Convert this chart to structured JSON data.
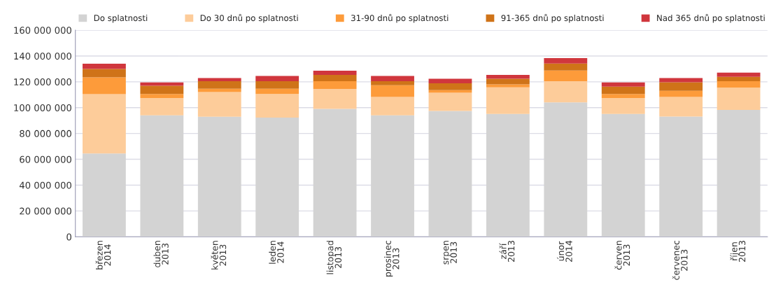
{
  "chart_data": {
    "type": "bar",
    "stacked": true,
    "categories": [
      "březen\n2014",
      "duben\n2013",
      "květen\n2013",
      "leden\n2014",
      "listopad\n2013",
      "prosinec\n2013",
      "srpen\n2013",
      "září\n2013",
      "únor\n2014",
      "červen\n2013",
      "červenec\n2013",
      "říjen\n2013"
    ],
    "series": [
      {
        "name": "Do splatnosti",
        "color": "#d3d3d3",
        "values": [
          64500000,
          94000000,
          93000000,
          92300000,
          99000000,
          94000000,
          97400000,
          95100000,
          104000000,
          95100000,
          93100000,
          98300000
        ]
      },
      {
        "name": "Do 30 dnů po splatnosti",
        "color": "#fdcc9a",
        "values": [
          46000000,
          13400000,
          19000000,
          18300000,
          15500000,
          14200000,
          14100000,
          20600000,
          16500000,
          12300000,
          15100000,
          17200000
        ]
      },
      {
        "name": "31-90 dnů po splatnosti",
        "color": "#fd9b3a",
        "values": [
          13000000,
          3200000,
          2700000,
          4100000,
          5900000,
          9100000,
          2100000,
          2300000,
          8200000,
          3200000,
          4800000,
          5000000
        ]
      },
      {
        "name": "91-365 dnů po splatnosti",
        "color": "#cf7318",
        "values": [
          6500000,
          6400000,
          5800000,
          5800000,
          4900000,
          3200000,
          5200000,
          4300000,
          5400000,
          5700000,
          6600000,
          3300000
        ]
      },
      {
        "name": "Nad 365 dnů po splatnosti",
        "color": "#d0363d",
        "values": [
          4000000,
          2500000,
          2400000,
          4000000,
          3300000,
          4000000,
          3500000,
          3100000,
          4300000,
          3200000,
          3300000,
          3300000
        ]
      }
    ],
    "ylim": [
      0,
      160000000
    ],
    "yticks": [
      0,
      {
        "value": 20000000,
        "label": "20 000 000"
      },
      {
        "value": 40000000,
        "label": "40 000 000"
      },
      {
        "value": 60000000,
        "label": "60 000 000"
      },
      {
        "value": 80000000,
        "label": "80 000 000"
      },
      {
        "value": 100000000,
        "label": "100 000 000"
      },
      {
        "value": 120000000,
        "label": "120 000 000"
      },
      {
        "value": 140000000,
        "label": "140 000 000"
      },
      {
        "value": 160000000,
        "label": "160 000 000"
      }
    ],
    "grid": "y",
    "legend": "top"
  }
}
